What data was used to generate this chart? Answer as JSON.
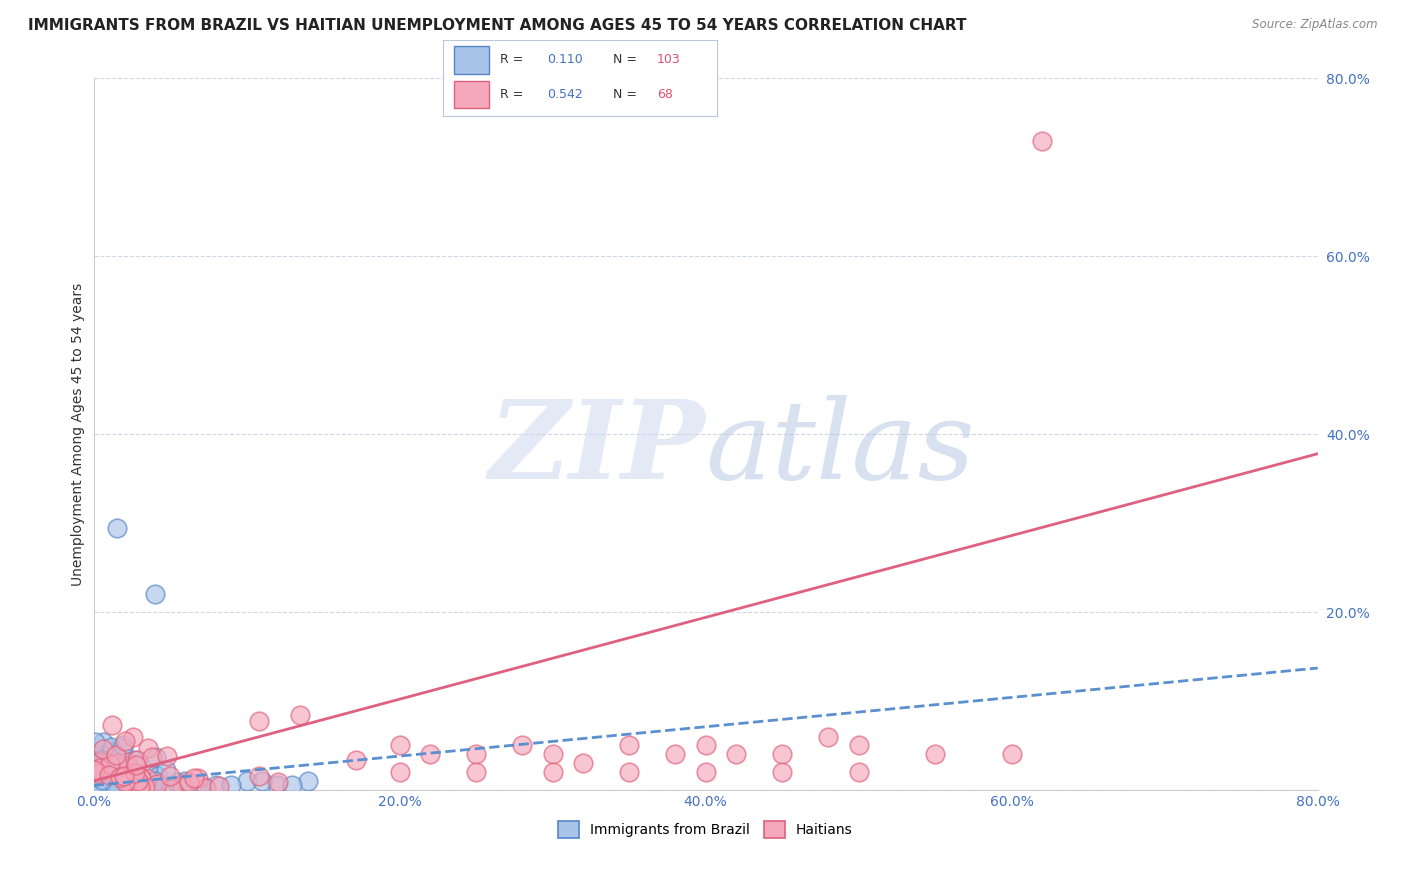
{
  "title": "IMMIGRANTS FROM BRAZIL VS HAITIAN UNEMPLOYMENT AMONG AGES 45 TO 54 YEARS CORRELATION CHART",
  "source": "Source: ZipAtlas.com",
  "ylabel": "Unemployment Among Ages 45 to 54 years",
  "xlim": [
    0.0,
    0.8
  ],
  "ylim": [
    0.0,
    0.8
  ],
  "yticks": [
    0.0,
    0.2,
    0.4,
    0.6,
    0.8
  ],
  "xticks": [
    0.0,
    0.2,
    0.4,
    0.6,
    0.8
  ],
  "brazil_R": 0.11,
  "brazil_N": 103,
  "haitian_R": 0.542,
  "haitian_N": 68,
  "brazil_color": "#a8c4e8",
  "haitian_color": "#f5a8bc",
  "brazil_edge_color": "#5585c8",
  "haitian_edge_color": "#e0607a",
  "brazil_line_color": "#5a8fd0",
  "haitian_line_color": "#e06080",
  "legend_label_brazil": "Immigrants from Brazil",
  "legend_label_haitian": "Haitians",
  "background_color": "#ffffff",
  "grid_color": "#d0d8e8",
  "tick_color": "#4472c4",
  "title_fontsize": 11,
  "label_fontsize": 10,
  "tick_fontsize": 10,
  "brazil_line_intercept": 0.005,
  "brazil_line_slope": 0.165,
  "haitian_line_intercept": 0.01,
  "haitian_line_slope": 0.46
}
